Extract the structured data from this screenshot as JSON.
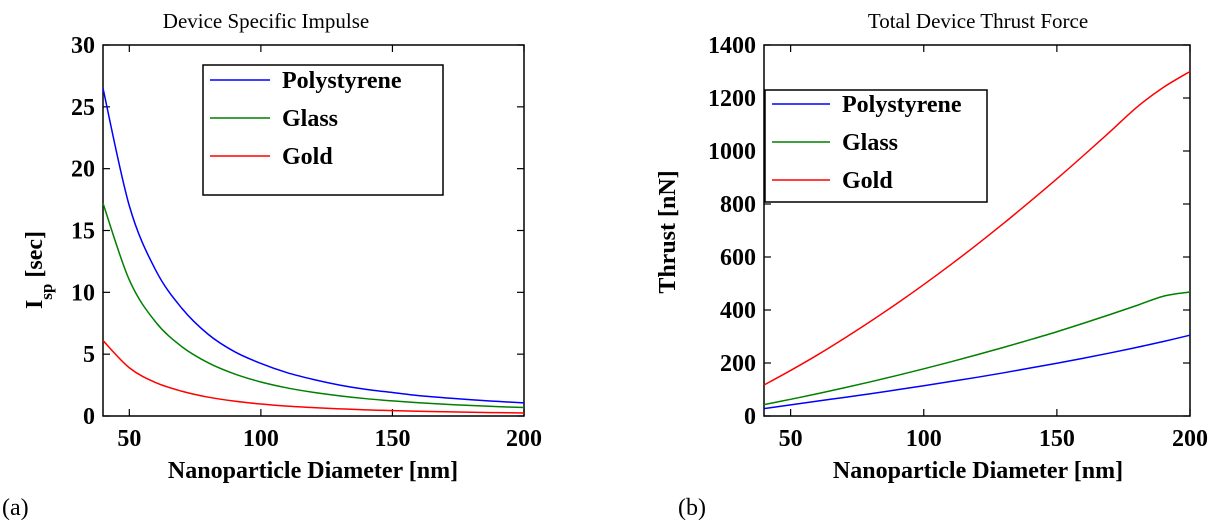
{
  "chart_data": [
    {
      "type": "line",
      "title": "Device Specific Impulse",
      "xlabel": "Nanoparticle Diameter [nm]",
      "ylabel_main": "I",
      "ylabel_sub": "sp",
      "ylabel_unit": " [sec]",
      "panel_label": "(a)",
      "xlim": [
        40,
        200
      ],
      "ylim": [
        0,
        30
      ],
      "xticks": [
        50,
        100,
        150,
        200
      ],
      "yticks": [
        0,
        5,
        10,
        15,
        20,
        25,
        30
      ],
      "grid": false,
      "legend_position": "top-center",
      "x": [
        40,
        50,
        60,
        70,
        80,
        90,
        100,
        110,
        120,
        130,
        140,
        150,
        160,
        170,
        180,
        190,
        200
      ],
      "series": [
        {
          "name": "Polystyrene",
          "color": "#0000ff",
          "values": [
            26.5,
            17.0,
            11.8,
            8.7,
            6.6,
            5.2,
            4.25,
            3.5,
            2.95,
            2.5,
            2.15,
            1.9,
            1.65,
            1.47,
            1.31,
            1.18,
            1.06
          ]
        },
        {
          "name": "Glass",
          "color": "#008000",
          "values": [
            17.2,
            11.0,
            7.6,
            5.6,
            4.3,
            3.4,
            2.75,
            2.27,
            1.91,
            1.63,
            1.4,
            1.22,
            1.07,
            0.95,
            0.85,
            0.76,
            0.69
          ]
        },
        {
          "name": "Gold",
          "color": "#ff0000",
          "values": [
            6.1,
            3.9,
            2.7,
            2.0,
            1.52,
            1.2,
            0.97,
            0.8,
            0.68,
            0.58,
            0.5,
            0.43,
            0.38,
            0.34,
            0.3,
            0.27,
            0.24
          ]
        }
      ]
    },
    {
      "type": "line",
      "title": "Total Device Thrust Force",
      "xlabel": "Nanoparticle Diameter [nm]",
      "ylabel": "Thrust [nN]",
      "panel_label": "(b)",
      "xlim": [
        40,
        200
      ],
      "ylim": [
        0,
        1400
      ],
      "xticks": [
        50,
        100,
        150,
        200
      ],
      "yticks": [
        0,
        200,
        400,
        600,
        800,
        1000,
        1200,
        1400
      ],
      "grid": false,
      "legend_position": "top-left",
      "x": [
        40,
        50,
        60,
        70,
        80,
        90,
        100,
        110,
        120,
        130,
        140,
        150,
        160,
        170,
        180,
        190,
        200
      ],
      "series": [
        {
          "name": "Polystyrene",
          "color": "#0000ff",
          "values": [
            28,
            42,
            56,
            70,
            84,
            99,
            114,
            130,
            146,
            163,
            181,
            199,
            218,
            238,
            259,
            281,
            305
          ]
        },
        {
          "name": "Glass",
          "color": "#008000",
          "values": [
            43,
            63,
            84,
            106,
            129,
            153,
            178,
            204,
            231,
            259,
            288,
            318,
            350,
            383,
            417,
            452,
            468
          ]
        },
        {
          "name": "Gold",
          "color": "#ff0000",
          "values": [
            117,
            172,
            230,
            292,
            357,
            425,
            496,
            570,
            647,
            727,
            810,
            895,
            983,
            1073,
            1165,
            1240,
            1300
          ]
        }
      ]
    }
  ]
}
